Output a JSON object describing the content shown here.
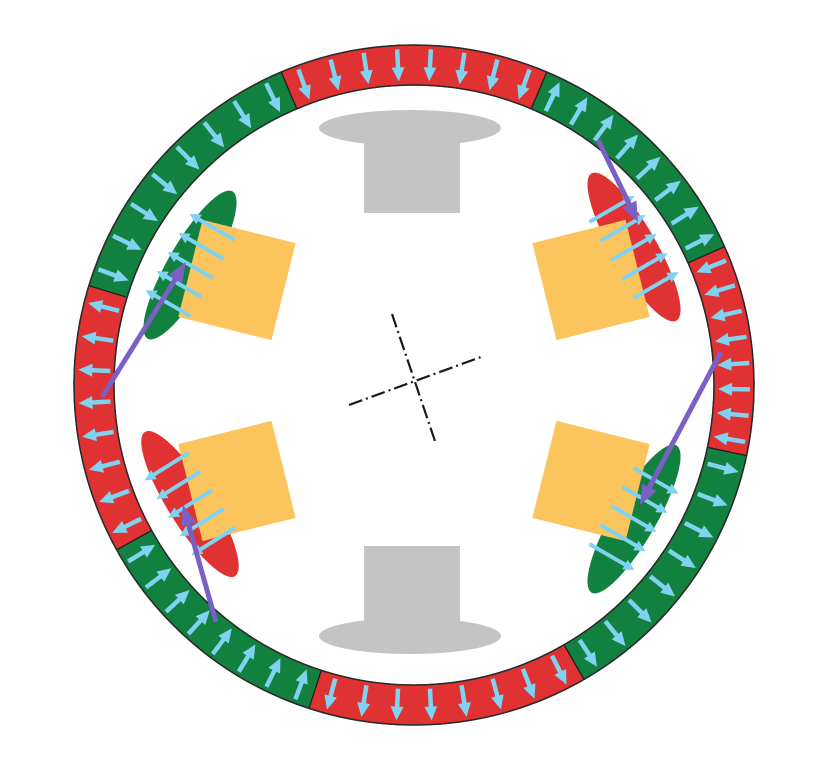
{
  "colors": {
    "background": "#ffffff",
    "north_segment": "#e03232",
    "south_segment": "#12803e",
    "segment_outline": "#1f1f1f",
    "ring_outline": "#2a2a2a",
    "magnetization_arrow": "#7fd2f0",
    "flux_arrow": "#7a5fc4",
    "pole_piece": "#c4c4c4",
    "yoke_block": "#fcc45c",
    "center_mark": "#1a1a1a"
  },
  "icons": {
    "magnetization_arrow": "arrow",
    "flux_arrow": "arrow",
    "center_mark": "dash-dot-crosshair"
  },
  "ring": {
    "segments": [
      {
        "polarity": "north",
        "arrow_direction": "inward"
      },
      {
        "polarity": "south",
        "arrow_direction": "outward"
      },
      {
        "polarity": "north",
        "arrow_direction": "inward"
      },
      {
        "polarity": "south",
        "arrow_direction": "outward"
      },
      {
        "polarity": "north",
        "arrow_direction": "outward"
      },
      {
        "polarity": "south",
        "arrow_direction": "inward"
      },
      {
        "polarity": "north",
        "arrow_direction": "outward"
      },
      {
        "polarity": "south",
        "arrow_direction": "inward"
      }
    ]
  },
  "pole_pieces": [
    {
      "position": "top"
    },
    {
      "position": "bottom"
    }
  ],
  "yoke_blocks": [
    {
      "position": "upper-left",
      "ellipse_polarity": "south"
    },
    {
      "position": "upper-right",
      "ellipse_polarity": "north"
    },
    {
      "position": "lower-left",
      "ellipse_polarity": "north"
    },
    {
      "position": "lower-right",
      "ellipse_polarity": "south"
    }
  ]
}
